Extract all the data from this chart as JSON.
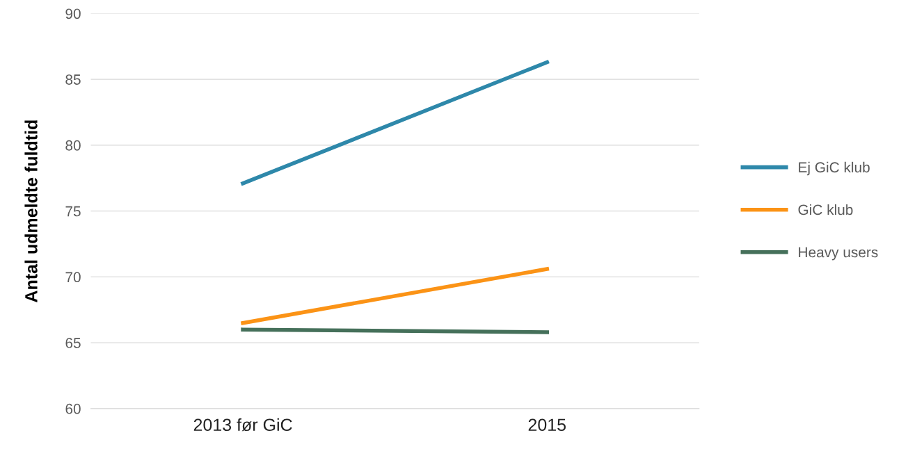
{
  "chart_data": {
    "type": "line",
    "ylabel": "Antal udmeldte fuldtid",
    "categories": [
      "2013 før GiC",
      "2015"
    ],
    "series": [
      {
        "name": "Ej GiC klub",
        "color": "#2e88aa",
        "values": [
          77.1,
          86.3
        ]
      },
      {
        "name": "GiC klub",
        "color": "#fb9316",
        "values": [
          66.5,
          70.6
        ]
      },
      {
        "name": "Heavy users",
        "color": "#45705a",
        "values": [
          66.0,
          65.8
        ]
      }
    ],
    "ylim": [
      60,
      90
    ],
    "yticks": [
      60,
      65,
      70,
      75,
      80,
      85,
      90
    ],
    "grid": "y",
    "legend": "right",
    "marker": "none",
    "line_style": "solid"
  }
}
